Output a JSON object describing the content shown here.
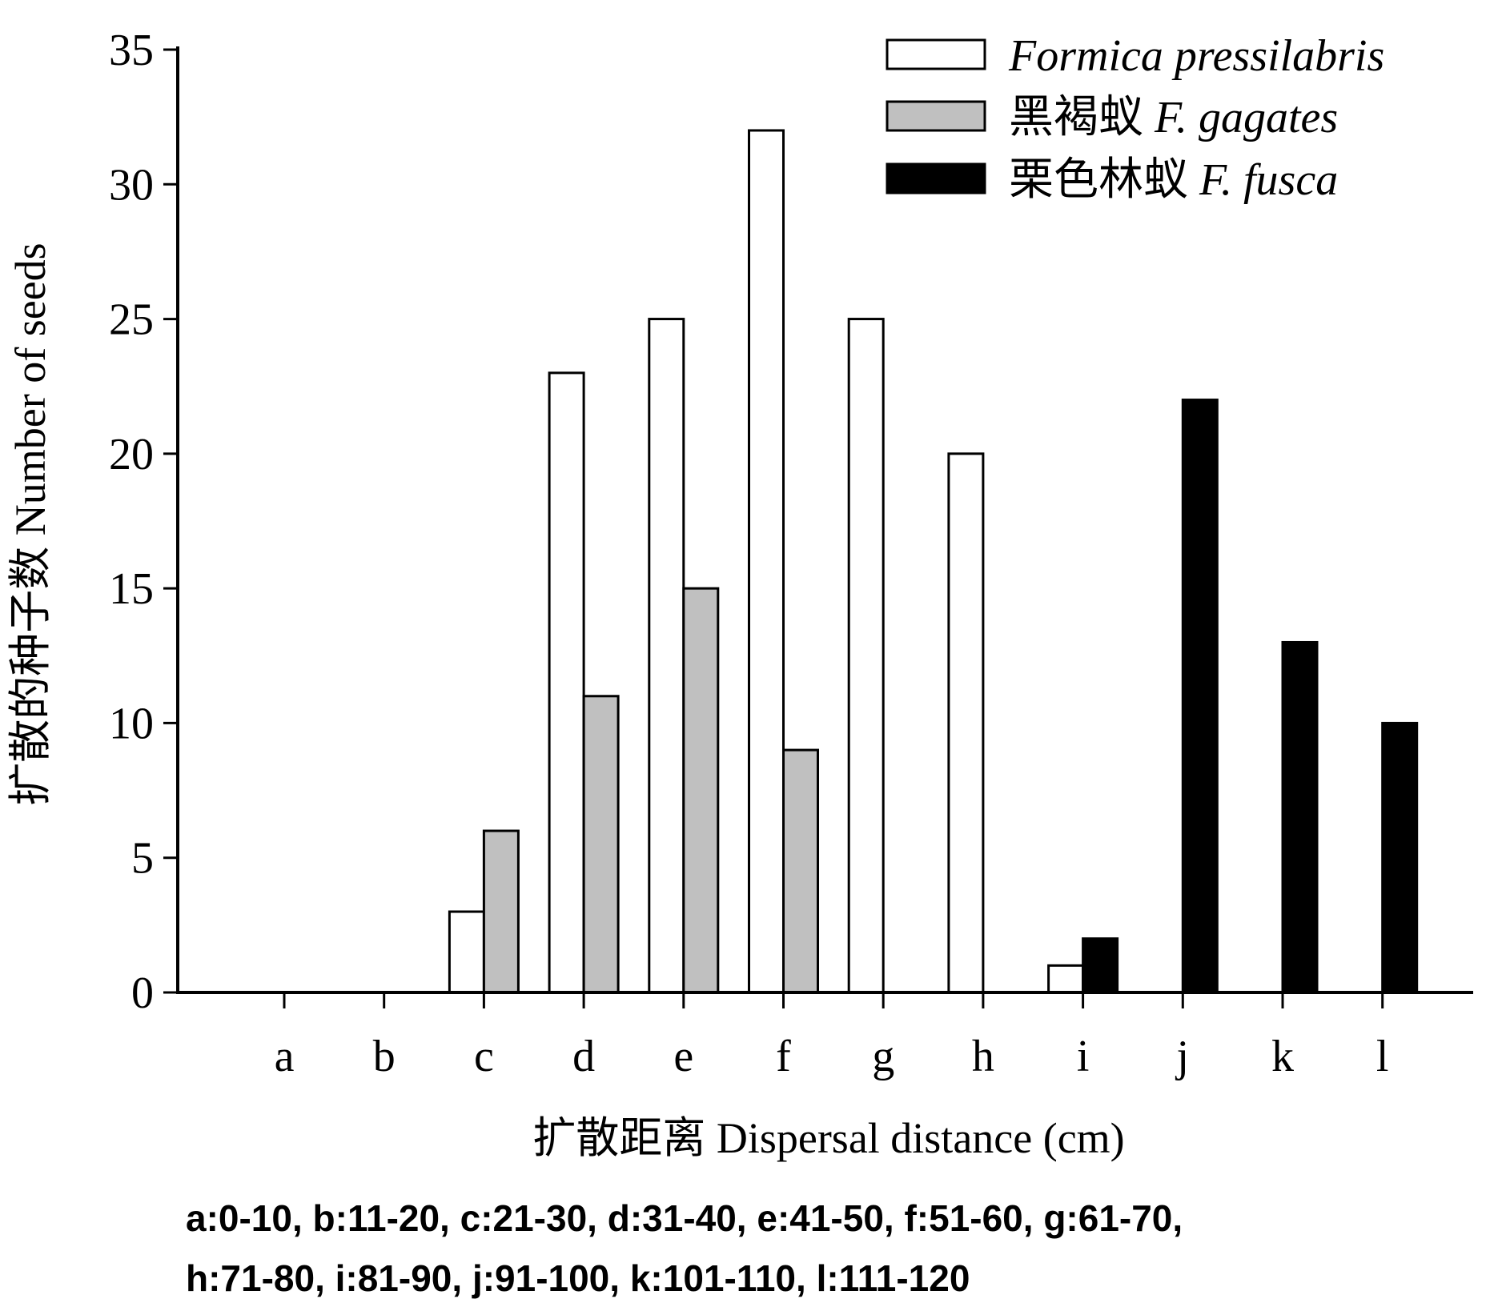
{
  "chart_data": {
    "type": "bar",
    "categories": [
      "a",
      "b",
      "c",
      "d",
      "e",
      "f",
      "g",
      "h",
      "i",
      "j",
      "k",
      "l"
    ],
    "series": [
      {
        "name": "Formica pressilabris",
        "name_prefix": "",
        "color": "#ffffff",
        "values": [
          0,
          0,
          3,
          23,
          25,
          32,
          25,
          20,
          1,
          0,
          0,
          0
        ]
      },
      {
        "name": "F. gagates",
        "name_prefix": "黑褐蚁",
        "color": "#c0c0c0",
        "values": [
          0,
          0,
          6,
          11,
          15,
          9,
          0,
          0,
          0,
          0,
          0,
          0
        ]
      },
      {
        "name": "F. fusca",
        "name_prefix": "栗色林蚁",
        "color": "#000000",
        "values": [
          0,
          0,
          0,
          0,
          0,
          0,
          0,
          0,
          2,
          22,
          13,
          10
        ]
      }
    ],
    "ylim": [
      0,
      35
    ],
    "yticks": [
      0,
      5,
      10,
      15,
      20,
      25,
      30,
      35
    ],
    "ylabel": "扩散的种子数 Number of seeds",
    "xlabel": "扩散距离 Dispersal distance (cm)",
    "legend_position": "top-right",
    "grid": false,
    "footnote": [
      "a:0-10, b:11-20, c:21-30, d:31-40, e:41-50, f:51-60, g:61-70,",
      "h:71-80, i:81-90, j:91-100, k:101-110, l:111-120"
    ]
  }
}
